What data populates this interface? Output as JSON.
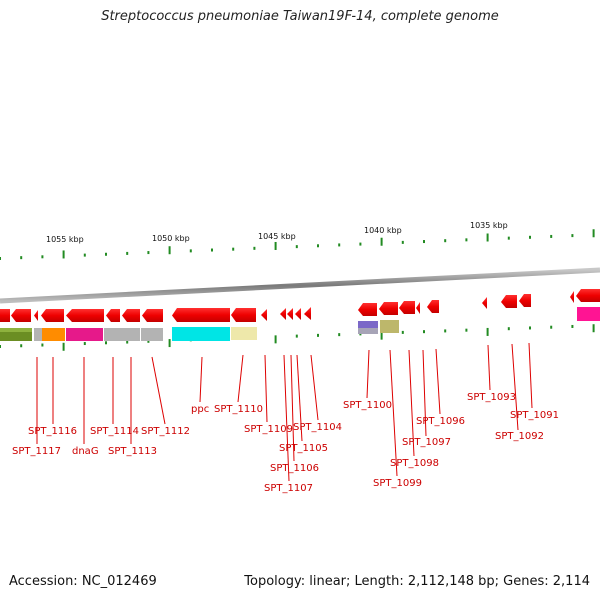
{
  "title": "Streptococcus pneumoniae Taiwan19F-14, complete genome",
  "accession": "Accession: NC_012469",
  "summary": "Topology: linear; Length: 2,112,148 bp; Genes: 2,114",
  "colors": {
    "gene_arrow": "#ee0000",
    "label_line": "#dd0000",
    "label_text": "#cc0000",
    "tick": "#228b22",
    "backbone": "#8c8c8c"
  },
  "ruler": {
    "unit": "kbp",
    "ticks": [
      {
        "label": "1055 kbp"
      },
      {
        "label": "1050 kbp"
      },
      {
        "label": "1045 kbp"
      },
      {
        "label": "1040 kbp"
      },
      {
        "label": "1035 kbp"
      }
    ]
  },
  "gene_labels": [
    "SPT_1117",
    "SPT_1116",
    "dnaG",
    "SPT_1114",
    "SPT_1113",
    "SPT_1112",
    "ppc",
    "SPT_1110",
    "SPT_1109",
    "SPT_1107",
    "SPT_1106",
    "SPT_1105",
    "SPT_1104",
    "SPT_1100",
    "SPT_1099",
    "SPT_1098",
    "SPT_1097",
    "SPT_1096",
    "SPT_1093",
    "SPT_1092",
    "SPT_1091"
  ],
  "domain_colors": [
    "#6b8e23",
    "#ff8c00",
    "#e6198a",
    "#b3b3b3",
    "#00e5e5",
    "#eee8aa",
    "#7b68c8",
    "#bdb76b"
  ]
}
